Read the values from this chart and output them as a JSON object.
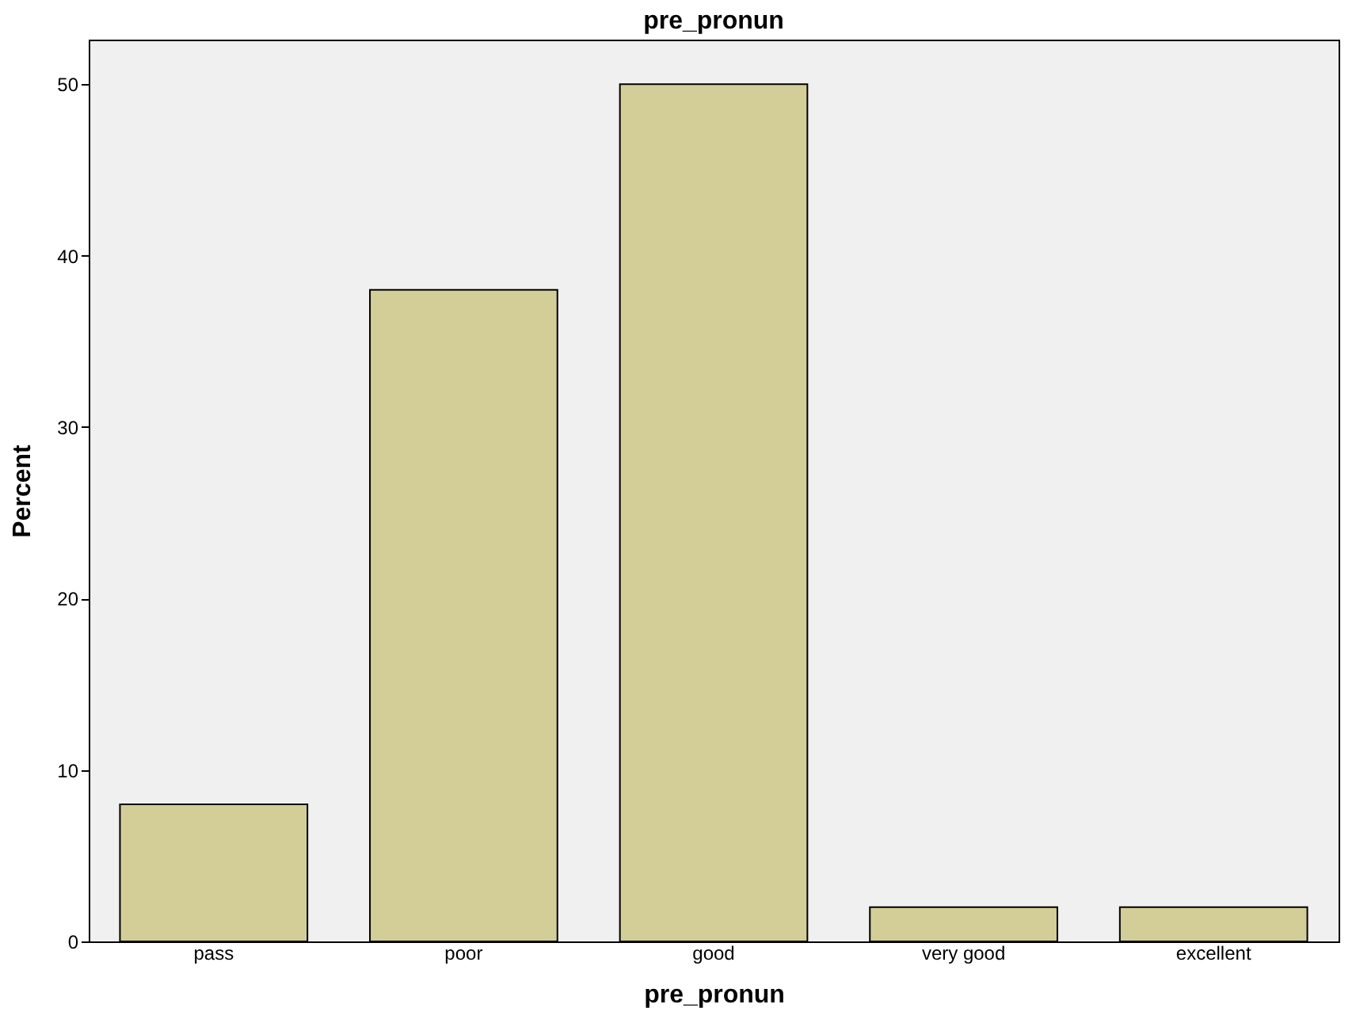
{
  "chart_data": {
    "type": "bar",
    "title": "pre_pronun",
    "xlabel": "pre_pronun",
    "ylabel": "Percent",
    "categories": [
      "pass",
      "poor",
      "good",
      "very good",
      "excellent"
    ],
    "values": [
      8,
      38,
      50,
      2,
      2
    ],
    "color": "#d3ce97",
    "ylim": [
      0,
      52.6
    ],
    "yticks": [
      0,
      10,
      20,
      30,
      40,
      50
    ],
    "grid": false
  }
}
